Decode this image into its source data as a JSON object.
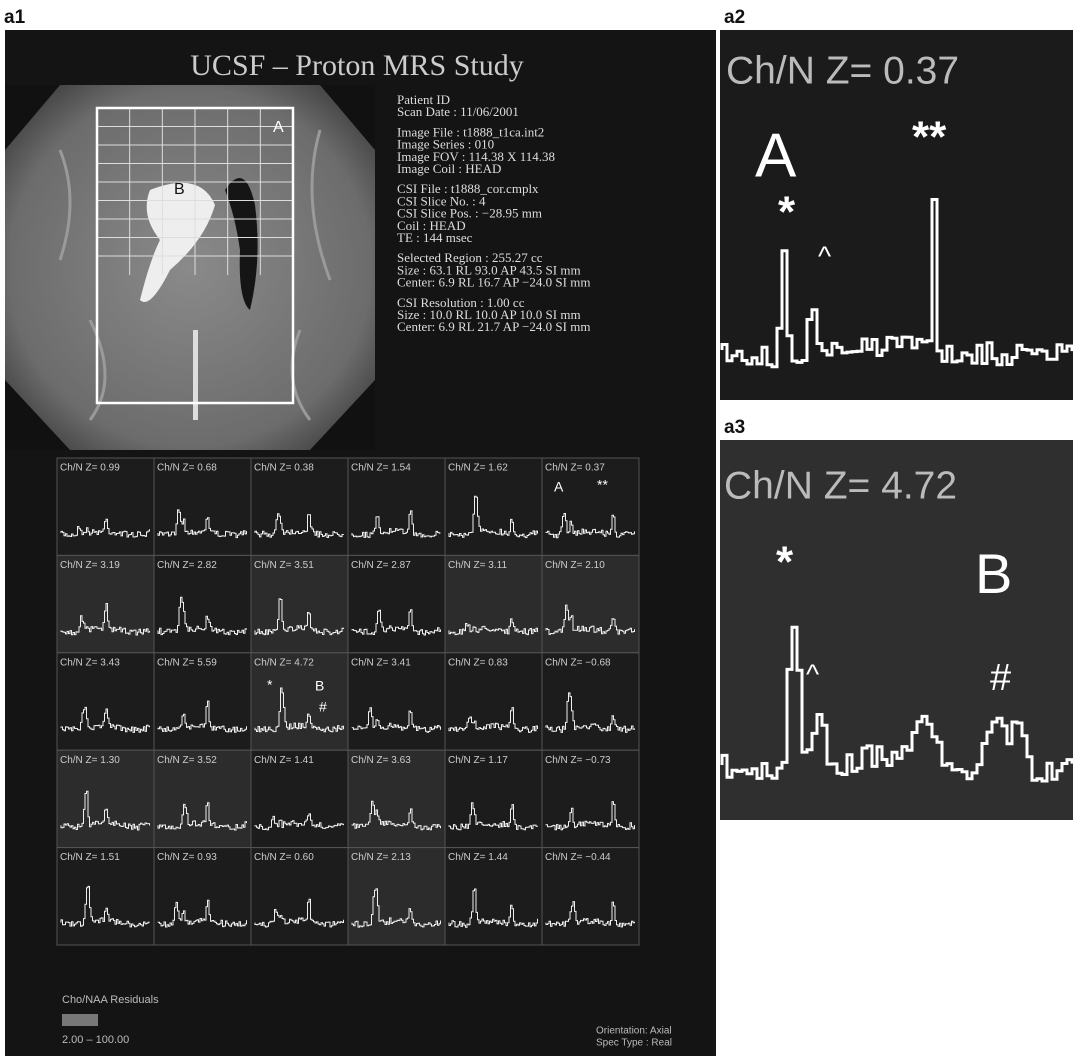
{
  "panels": {
    "a1": {
      "label": "a1",
      "title": "UCSF – Proton MRS Study",
      "image_labels": [
        "A",
        "B"
      ],
      "info": [
        [
          "Patient ID",
          "Scan Date : 11/06/2001"
        ],
        [
          "Image File : t1888_t1ca.int2",
          "Image Series : 010",
          "Image FOV : 114.38 X 114.38",
          "Image Coil : HEAD"
        ],
        [
          "CSI File : t1888_cor.cmplx",
          "CSI Slice No. : 4",
          "CSI Slice Pos. : −28.95 mm",
          "Coil : HEAD",
          "TE : 144 msec"
        ],
        [
          "Selected Region : 255.27 cc",
          "Size : 63.1 RL 93.0 AP 43.5 SI mm",
          "Center: 6.9 RL 16.7 AP −24.0 SI mm"
        ],
        [
          "CSI Resolution : 1.00 cc",
          "Size : 10.0 RL 10.0 AP 10.0 SI mm",
          "Center: 6.9 RL 21.7 AP −24.0 SI mm"
        ]
      ],
      "cells": [
        {
          "label": "Ch/N Z= 0.99"
        },
        {
          "label": "Ch/N Z= 0.68"
        },
        {
          "label": "Ch/N Z= 0.38"
        },
        {
          "label": "Ch/N Z= 1.54"
        },
        {
          "label": "Ch/N Z= 1.62"
        },
        {
          "label": "Ch/N Z= 0.37",
          "notes": [
            "A",
            "**"
          ]
        },
        {
          "label": "Ch/N Z= 3.19"
        },
        {
          "label": "Ch/N Z= 2.82"
        },
        {
          "label": "Ch/N Z= 3.51"
        },
        {
          "label": "Ch/N Z= 2.87"
        },
        {
          "label": "Ch/N Z= 3.11"
        },
        {
          "label": "Ch/N Z= 2.10"
        },
        {
          "label": "Ch/N Z= 3.43"
        },
        {
          "label": "Ch/N Z= 5.59"
        },
        {
          "label": "Ch/N Z= 4.72",
          "notes": [
            "*",
            "B",
            "#"
          ]
        },
        {
          "label": "Ch/N Z= 3.41"
        },
        {
          "label": "Ch/N Z= 0.83"
        },
        {
          "label": "Ch/N Z= −0.68"
        },
        {
          "label": "Ch/N Z= 1.30"
        },
        {
          "label": "Ch/N Z= 3.52"
        },
        {
          "label": "Ch/N Z= 1.41"
        },
        {
          "label": "Ch/N Z= 3.63"
        },
        {
          "label": "Ch/N Z= 1.17"
        },
        {
          "label": "Ch/N Z= −0.73"
        },
        {
          "label": "Ch/N Z= 1.51"
        },
        {
          "label": "Ch/N Z= 0.93"
        },
        {
          "label": "Ch/N Z= 0.60"
        },
        {
          "label": "Ch/N Z= 2.13"
        },
        {
          "label": "Ch/N Z= 1.44"
        },
        {
          "label": "Ch/N Z= −0.44"
        }
      ],
      "legend_title": "Cho/NAA Residuals",
      "legend_range": "2.00 – 100.00",
      "footer": [
        "Orientation: Axial",
        "Spec Type : Real"
      ]
    },
    "a2": {
      "label": "a2",
      "header": "Ch/N Z= 0.37",
      "notes": [
        "A",
        "**",
        "*",
        "^"
      ]
    },
    "a3": {
      "label": "a3",
      "header": "Ch/N Z= 4.72",
      "notes": [
        "*",
        "B",
        "^",
        "#"
      ]
    }
  }
}
